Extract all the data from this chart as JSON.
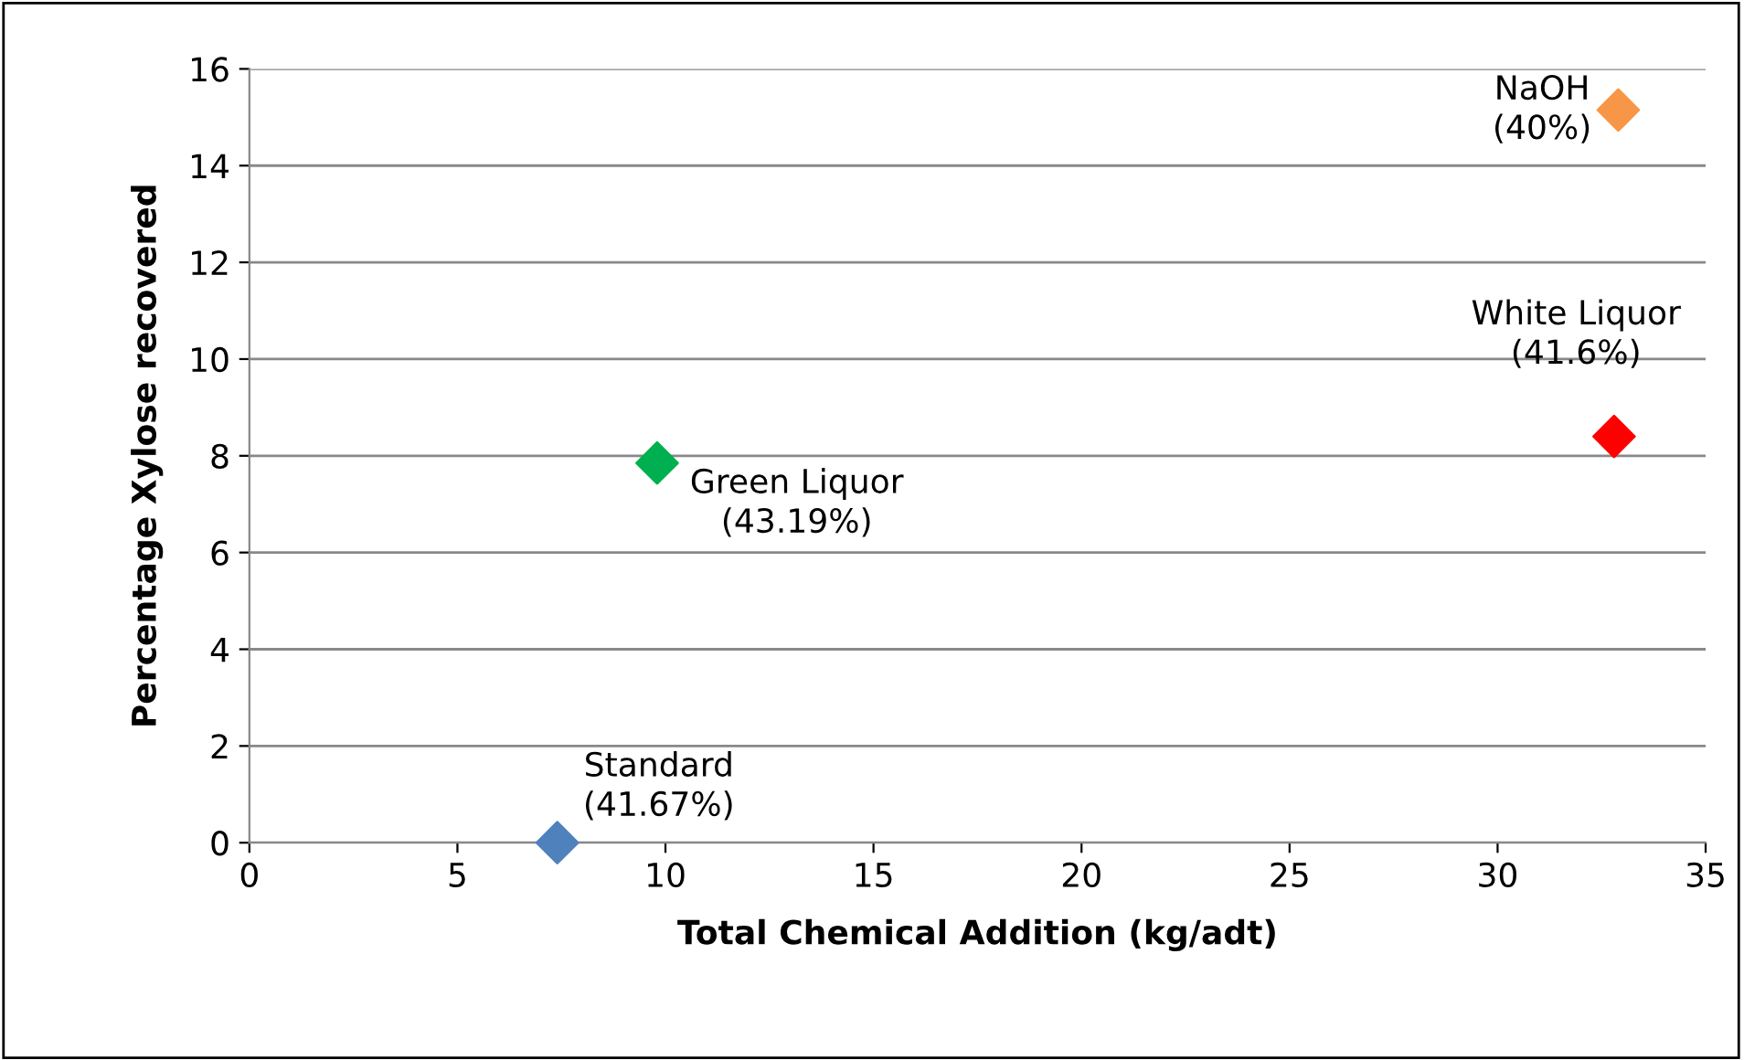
{
  "chart_data": {
    "type": "scatter",
    "xlabel": "Total Chemical Addition (kg/adt)",
    "ylabel": "Percentage Xylose recovered",
    "series": [
      {
        "x": [
          7.4
        ],
        "values": [
          0
        ],
        "color": "#4f81bd"
      },
      {
        "x": [
          9.8
        ],
        "values": [
          7.85
        ],
        "color": "#00b050"
      },
      {
        "x": [
          32.8
        ],
        "values": [
          8.4
        ],
        "color": "#ff0000"
      },
      {
        "x": [
          32.9
        ],
        "values": [
          15.15
        ],
        "color": "#f79646"
      }
    ],
    "annotations": [
      {
        "text": "Standard\n(41.67%)",
        "x": 7.4,
        "y": 0
      },
      {
        "text": "Green Liquor\n(43.19%)",
        "x": 9.8,
        "y": 7.85
      },
      {
        "text": "White Liquor\n(41.6%)",
        "x": 32.8,
        "y": 8.4
      },
      {
        "text": "NaOH\n(40%)",
        "x": 32.9,
        "y": 15.15
      }
    ],
    "xlim": [
      0,
      35
    ],
    "xticks": [
      0,
      5,
      10,
      15,
      20,
      25,
      30,
      35
    ],
    "ylim": [
      0,
      16
    ],
    "yticks": [
      0,
      2,
      4,
      6,
      8,
      10,
      12,
      14,
      16
    ],
    "grid": "y",
    "marker": "diamond",
    "legend": false
  }
}
